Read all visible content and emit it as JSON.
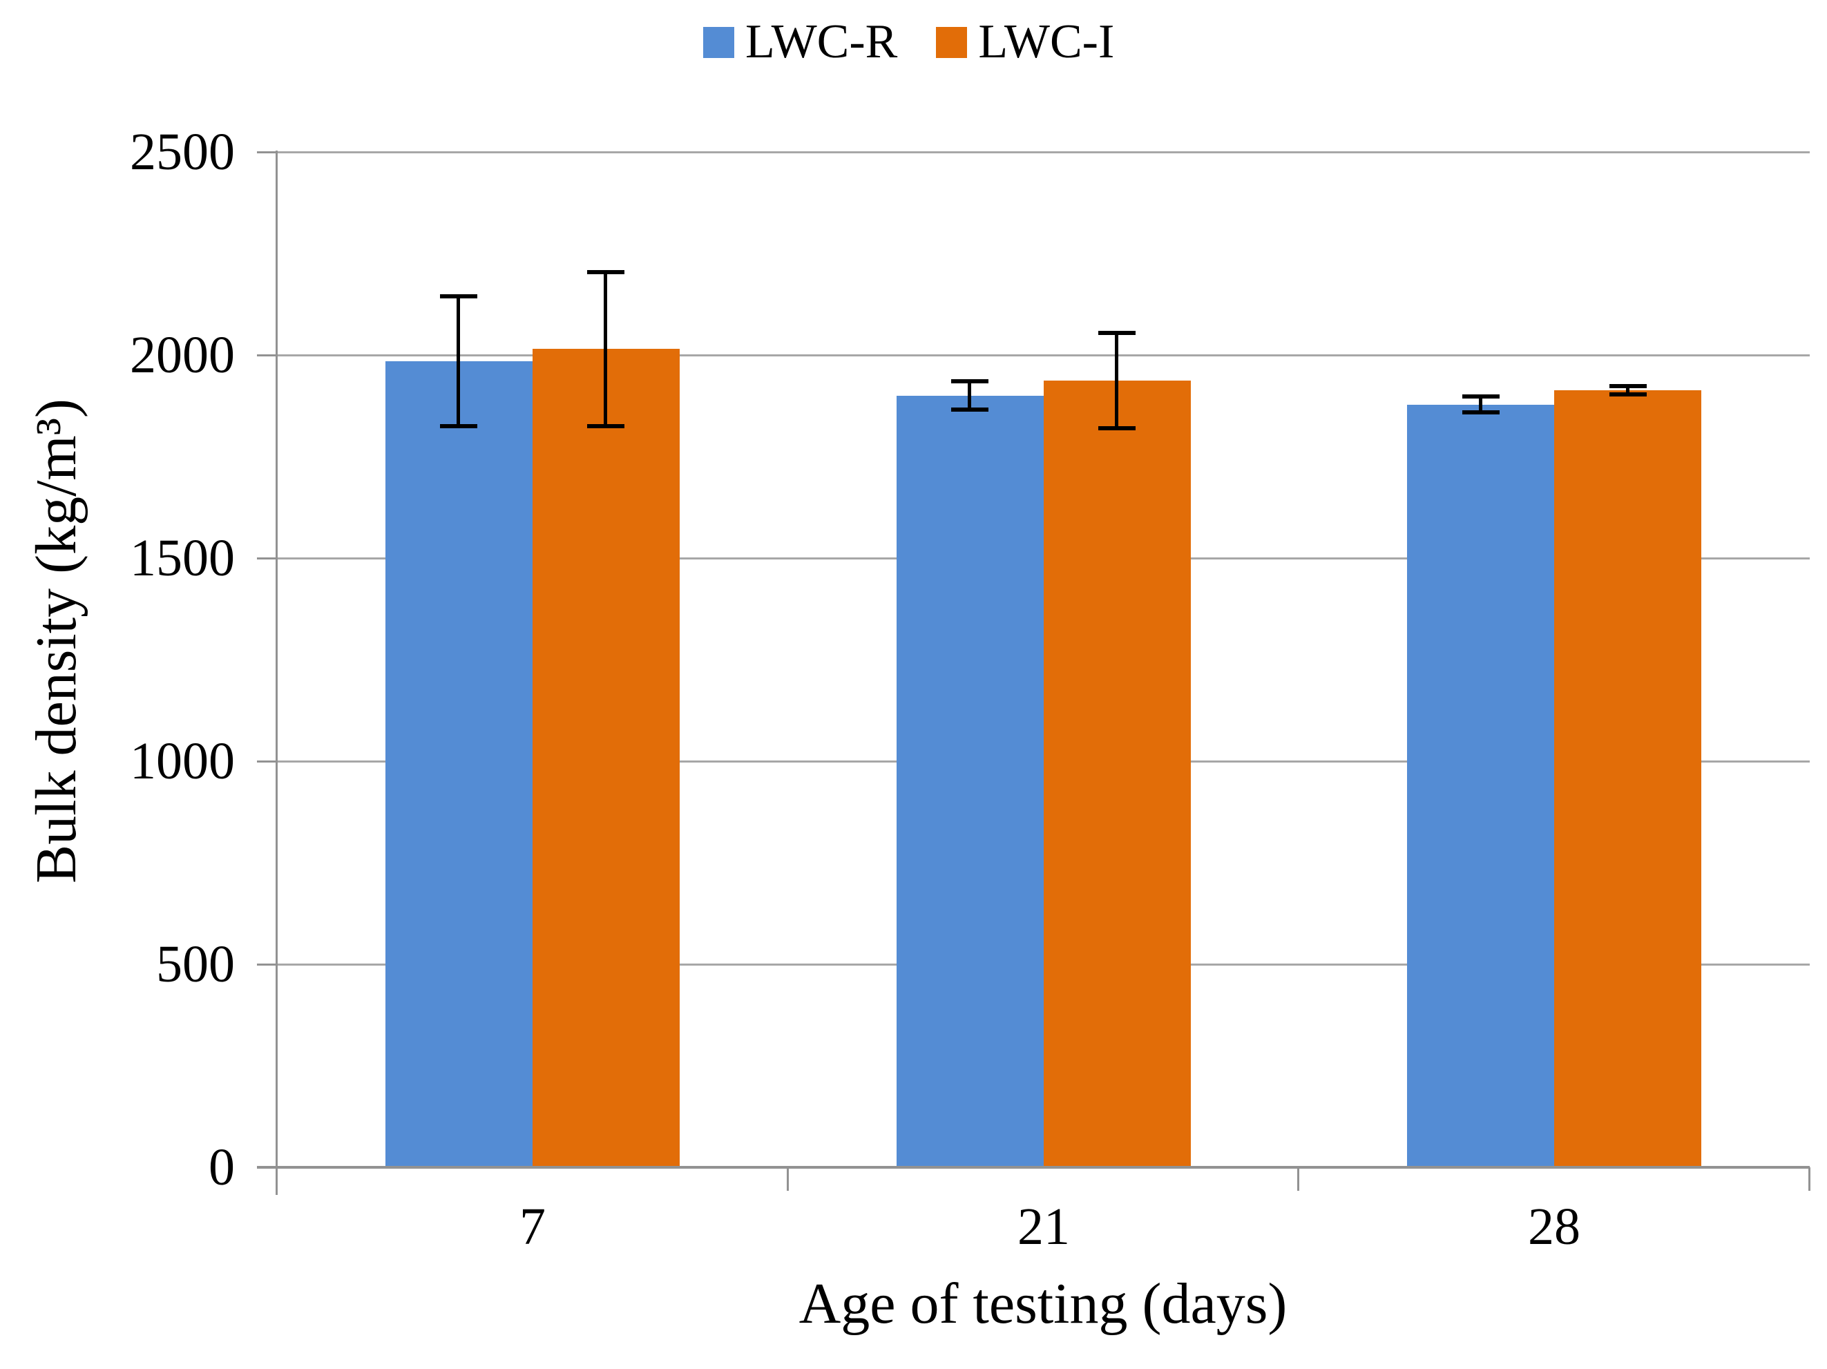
{
  "chart_data": {
    "type": "bar",
    "title": "",
    "categories": [
      "7",
      "21",
      "28"
    ],
    "series": [
      {
        "name": "LWC-R",
        "color": "#548CD4",
        "values": [
          1985,
          1900,
          1878
        ],
        "errors": [
          165,
          40,
          25
        ]
      },
      {
        "name": "LWC-I",
        "color": "#E26D08",
        "values": [
          2015,
          1937,
          1913
        ],
        "errors": [
          195,
          122,
          15
        ]
      }
    ],
    "xlabel": "Age of testing (days)",
    "ylabel": "Bulk density (kg/m³)",
    "ylim": [
      0,
      2500
    ],
    "yticks": [
      0,
      500,
      1000,
      1500,
      2000,
      2500
    ],
    "grid": true,
    "legend_position": "top",
    "error_bar_color": "#000000",
    "gridline_color": "#A7A7A7",
    "axis_color": "#929292",
    "background_color": "#FFFFFF"
  }
}
